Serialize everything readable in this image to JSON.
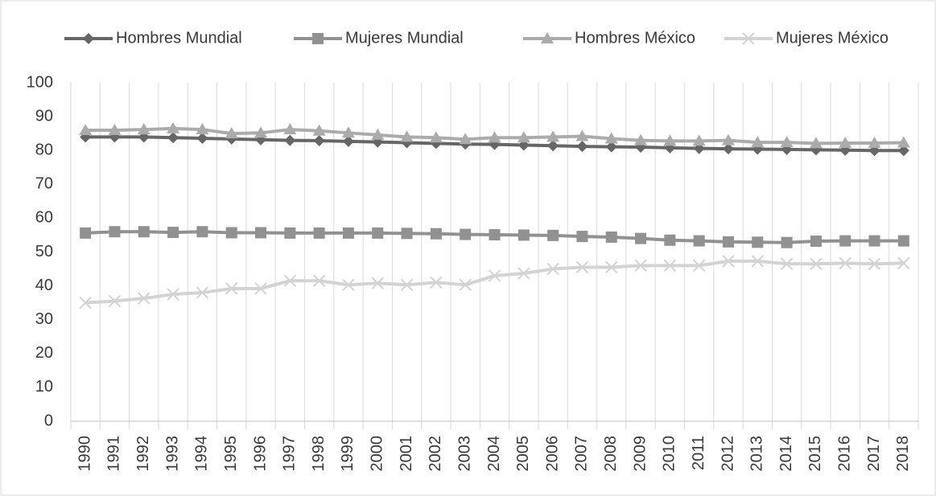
{
  "chart_data": {
    "type": "line",
    "categories": [
      "1990",
      "1991",
      "1992",
      "1993",
      "1994",
      "1995",
      "1996",
      "1997",
      "1998",
      "1999",
      "2000",
      "2001",
      "2002",
      "2003",
      "2004",
      "2005",
      "2006",
      "2007",
      "2008",
      "2009",
      "2010",
      "2011",
      "2012",
      "2013",
      "2014",
      "2015",
      "2016",
      "2017",
      "2018"
    ],
    "series": [
      {
        "name": "Hombres Mundial",
        "color": "#666666",
        "marker": "diamond",
        "values": [
          84,
          84,
          84,
          83.8,
          83.6,
          83.4,
          83.2,
          83,
          82.9,
          82.7,
          82.5,
          82.3,
          82.1,
          81.9,
          81.8,
          81.6,
          81.4,
          81.2,
          81.1,
          81,
          80.8,
          80.6,
          80.5,
          80.4,
          80.3,
          80.2,
          80.1,
          80,
          80
        ]
      },
      {
        "name": "Mujeres Mundial",
        "color": "#919191",
        "marker": "square",
        "values": [
          55.6,
          56,
          56,
          55.8,
          56,
          55.7,
          55.7,
          55.6,
          55.6,
          55.6,
          55.6,
          55.5,
          55.4,
          55.2,
          55.1,
          55,
          54.9,
          54.6,
          54.4,
          54,
          53.5,
          53.3,
          53,
          52.9,
          52.8,
          53.2,
          53.3,
          53.3,
          53.3
        ]
      },
      {
        "name": "Hombres México",
        "color": "#ababab",
        "marker": "triangle",
        "values": [
          86,
          86,
          86.2,
          86.5,
          86.2,
          85,
          85.2,
          86.2,
          85.8,
          85.2,
          84.6,
          84,
          83.8,
          83.3,
          83.8,
          83.8,
          84,
          84.2,
          83.5,
          83,
          82.8,
          82.8,
          83,
          82.4,
          82.4,
          82.1,
          82.2,
          82.2,
          82.3
        ]
      },
      {
        "name": "Mujeres México",
        "color": "#d3d3d3",
        "marker": "x",
        "values": [
          35,
          35.5,
          36.3,
          37.5,
          38,
          39.2,
          39.2,
          41.5,
          41.5,
          40.3,
          40.8,
          40.3,
          41,
          40.3,
          43,
          43.7,
          45,
          45.5,
          45.5,
          46,
          46,
          46,
          47.3,
          47.3,
          46.5,
          46.5,
          46.7,
          46.5,
          46.7
        ]
      }
    ],
    "ylim": [
      0,
      100
    ],
    "yticks": [
      0,
      10,
      20,
      30,
      40,
      50,
      60,
      70,
      80,
      90,
      100
    ],
    "grid": "vertical",
    "legend": "top"
  }
}
